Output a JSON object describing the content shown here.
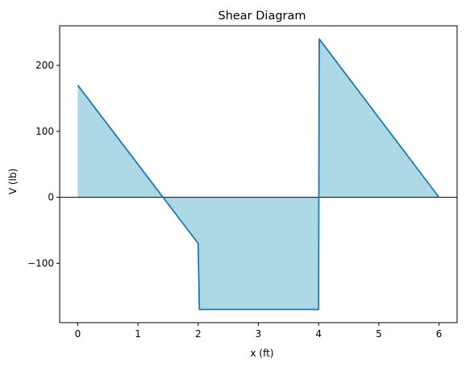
{
  "chart_data": {
    "type": "area",
    "title": "Shear Diagram",
    "xlabel": "x (ft)",
    "ylabel": "V (lb)",
    "xlim": [
      -0.3,
      6.3
    ],
    "ylim": [
      -190,
      260
    ],
    "xticks": [
      0,
      1,
      2,
      3,
      4,
      5,
      6
    ],
    "yticks": [
      -100,
      0,
      100,
      200
    ],
    "ytick_labels": [
      "−100",
      "0",
      "100",
      "200"
    ],
    "grid": false,
    "baseline": 0,
    "colors": {
      "line": "#1f77b4",
      "fill": "#add8e6",
      "baseline": "#000000"
    },
    "series": [
      {
        "x": [
          0,
          2,
          2.02,
          4,
          4.01,
          6
        ],
        "y": [
          170,
          -70,
          -170,
          -170,
          240,
          0
        ]
      }
    ]
  }
}
